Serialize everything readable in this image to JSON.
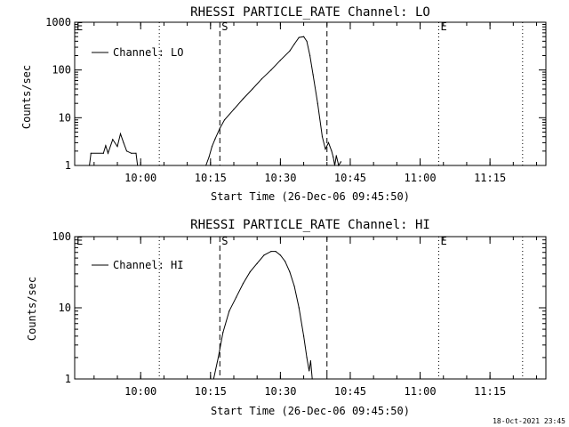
{
  "footer_timestamp": "18-Oct-2021 23:45",
  "chart_data": [
    {
      "type": "line",
      "title": "RHESSI PARTICLE_RATE Channel: LO",
      "xlabel": "Start Time (26-Dec-06 09:45:50)",
      "ylabel": "Counts/sec",
      "y_scale": "log",
      "ylim": [
        1,
        1000
      ],
      "xlim": [
        "09:45:50",
        "11:27:00"
      ],
      "x_ticks": [
        "10:00",
        "10:15",
        "10:30",
        "10:45",
        "11:00",
        "11:15"
      ],
      "y_ticks": [
        "1",
        "10",
        "100",
        "1000"
      ],
      "legend": {
        "placement": "top-left",
        "entries": [
          "Channel: LO"
        ]
      },
      "markers": [
        {
          "label": "S",
          "time": "10:17:00",
          "style": "dashed"
        },
        {
          "label": "",
          "time": "10:40:00",
          "style": "dashed"
        },
        {
          "label": "",
          "time": "10:04:00",
          "style": "dotted"
        },
        {
          "label": "E",
          "time": "11:04:00",
          "style": "dotted"
        },
        {
          "label": "",
          "time": "11:22:00",
          "style": "dotted"
        },
        {
          "label": "E",
          "time": "09:45:50",
          "style": "edge"
        }
      ],
      "series": [
        {
          "name": "Channel: LO",
          "x": [
            "09:49:00",
            "09:49:20",
            "09:52:00",
            "09:52:30",
            "09:53:00",
            "09:54:00",
            "09:55:00",
            "09:55:40",
            "09:56:20",
            "09:57:00",
            "09:58:00",
            "09:59:00",
            "09:59:20",
            "10:14:00",
            "10:14:40",
            "10:15:20",
            "10:16:00",
            "10:17:00",
            "10:18:00",
            "10:20:00",
            "10:22:00",
            "10:24:00",
            "10:26:00",
            "10:28:00",
            "10:30:00",
            "10:32:00",
            "10:33:00",
            "10:34:00",
            "10:35:00",
            "10:35:40",
            "10:36:20",
            "10:37:00",
            "10:38:00",
            "10:39:00",
            "10:39:40",
            "10:40:20",
            "10:41:00",
            "10:41:20",
            "10:41:40",
            "10:42:00",
            "10:42:30",
            "10:43:00"
          ],
          "y": [
            1.0,
            1.8,
            1.8,
            2.6,
            1.8,
            3.5,
            2.5,
            4.6,
            3.0,
            2.0,
            1.8,
            1.8,
            1.0,
            1.0,
            1.5,
            2.5,
            3.6,
            6.0,
            9.0,
            15,
            25,
            40,
            65,
            100,
            160,
            250,
            350,
            480,
            500,
            400,
            200,
            80,
            20,
            4,
            2.2,
            3,
            2,
            1.5,
            1,
            1.6,
            1,
            1.2
          ]
        }
      ]
    },
    {
      "type": "line",
      "title": "RHESSI PARTICLE_RATE Channel: HI",
      "xlabel": "Start Time (26-Dec-06 09:45:50)",
      "ylabel": "Counts/sec",
      "y_scale": "log",
      "ylim": [
        1,
        100
      ],
      "xlim": [
        "09:45:50",
        "11:27:00"
      ],
      "x_ticks": [
        "10:00",
        "10:15",
        "10:30",
        "10:45",
        "11:00",
        "11:15"
      ],
      "y_ticks": [
        "1",
        "10",
        "100"
      ],
      "legend": {
        "placement": "top-left",
        "entries": [
          "Channel: HI"
        ]
      },
      "markers": [
        {
          "label": "S",
          "time": "10:17:00",
          "style": "dashed"
        },
        {
          "label": "",
          "time": "10:40:00",
          "style": "dashed"
        },
        {
          "label": "",
          "time": "10:04:00",
          "style": "dotted"
        },
        {
          "label": "E",
          "time": "11:04:00",
          "style": "dotted"
        },
        {
          "label": "",
          "time": "11:22:00",
          "style": "dotted"
        },
        {
          "label": "E",
          "time": "09:45:50",
          "style": "edge"
        }
      ],
      "series": [
        {
          "name": "Channel: HI",
          "x": [
            "10:15:40",
            "10:16:40",
            "10:17:40",
            "10:19:00",
            "10:20:30",
            "10:22:00",
            "10:23:30",
            "10:25:00",
            "10:26:30",
            "10:28:00",
            "10:29:00",
            "10:30:00",
            "10:31:00",
            "10:32:00",
            "10:33:00",
            "10:34:00",
            "10:35:00",
            "10:35:40",
            "10:36:10",
            "10:36:30",
            "10:36:50"
          ],
          "y": [
            1.0,
            2.0,
            4.5,
            9.0,
            14,
            22,
            32,
            42,
            55,
            62,
            62,
            55,
            45,
            32,
            20,
            10,
            4,
            2,
            1.3,
            1.8,
            1.0
          ]
        }
      ]
    }
  ]
}
